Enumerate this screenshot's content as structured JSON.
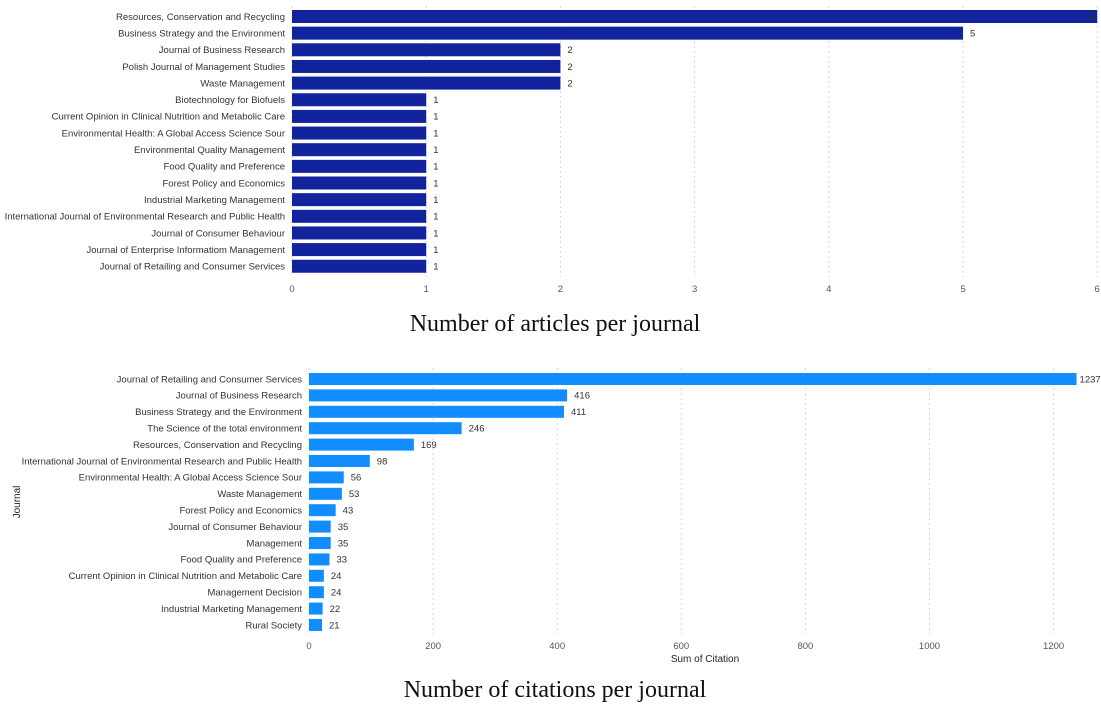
{
  "chart_data": [
    {
      "type": "bar",
      "orientation": "horizontal",
      "title": "Number of articles per journal",
      "xlabel": "",
      "ylabel": "",
      "xlim": [
        0,
        6
      ],
      "xticks": [
        0,
        1,
        2,
        3,
        4,
        5,
        6
      ],
      "grid": true,
      "color": "#12239E",
      "categories": [
        "Resources, Conservation and Recycling",
        "Business Strategy and the Environment",
        "Journal of Business Research",
        "Polish Journal of Management Studies",
        "Waste Management",
        "Biotechnology for Biofuels",
        "Current Opinion in Clinical Nutrition and Metabolic Care",
        "Environmental Health: A Global Access Science Sour",
        "Environmental Quality Management",
        "Food Quality and Preference",
        "Forest Policy and Economics",
        "Industrial Marketing Management",
        "International Journal of Environmental Research and Public Health",
        "Journal of Consumer Behaviour",
        "Journal of Enterprise Informatiom Management",
        "Journal of Retailing and Consumer Services"
      ],
      "values": [
        6,
        5,
        2,
        2,
        2,
        1,
        1,
        1,
        1,
        1,
        1,
        1,
        1,
        1,
        1,
        1
      ]
    },
    {
      "type": "bar",
      "orientation": "horizontal",
      "title": "Number of citations per journal",
      "xlabel": "Sum of Citation",
      "ylabel": "Journal",
      "xlim": [
        0,
        1237
      ],
      "xticks": [
        0,
        200,
        400,
        600,
        800,
        1000,
        1200
      ],
      "grid": true,
      "color": "#118DFF",
      "categories": [
        "Journal of Retailing and Consumer Services",
        "Journal of Business Research",
        "Business Strategy and the Environment",
        "The Science of the total environment",
        "Resources, Conservation and Recycling",
        "International Journal of Environmental Research and Public Health",
        "Environmental Health: A Global Access Science Sour",
        "Waste Management",
        "Forest Policy and Economics",
        "Journal of Consumer Behaviour",
        "Management",
        "Food Quality and Preference",
        "Current Opinion in Clinical Nutrition and Metabolic Care",
        "Management Decision",
        "Industrial Marketing Management",
        "Rural Society"
      ],
      "values": [
        1237,
        416,
        411,
        246,
        169,
        98,
        56,
        53,
        43,
        35,
        35,
        33,
        24,
        24,
        22,
        21
      ]
    }
  ]
}
